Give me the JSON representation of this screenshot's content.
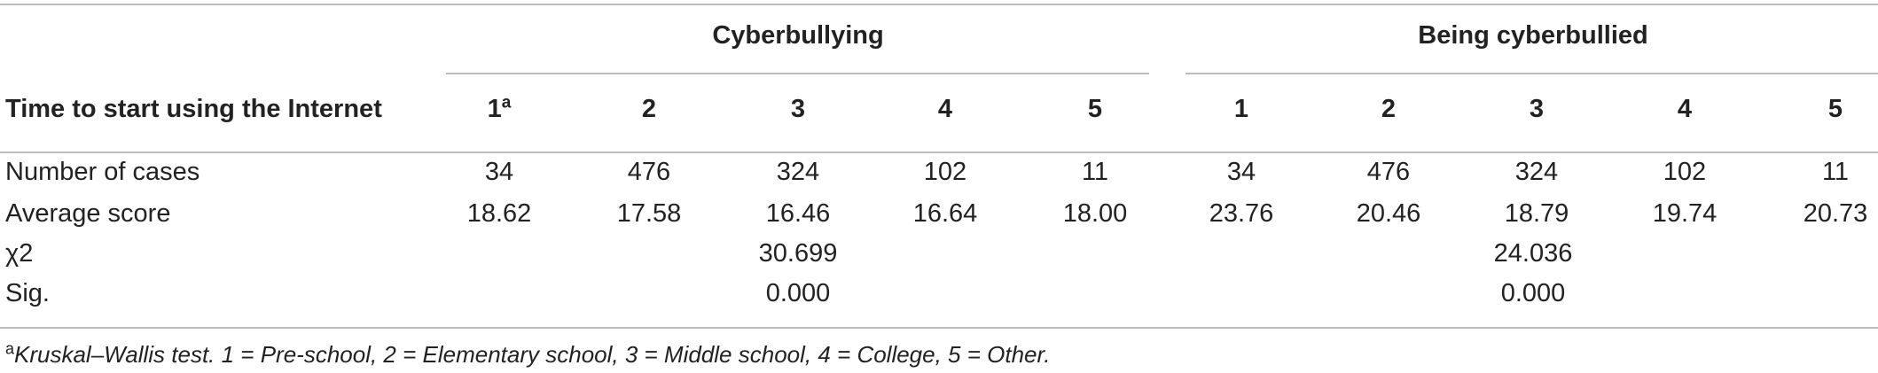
{
  "groups": {
    "cyber": "Cyberbullying",
    "victim": "Being cyberbullied"
  },
  "row_header": "Time to start using the Internet",
  "superscript": "a",
  "columns": {
    "cyber": [
      "1",
      "2",
      "3",
      "4",
      "5"
    ],
    "victim": [
      "1",
      "2",
      "3",
      "4",
      "5"
    ]
  },
  "rows": {
    "cases": {
      "label": "Number of cases",
      "cyber": [
        "34",
        "476",
        "324",
        "102",
        "11"
      ],
      "victim": [
        "34",
        "476",
        "324",
        "102",
        "11"
      ]
    },
    "average": {
      "label": "Average score",
      "cyber": [
        "18.62",
        "17.58",
        "16.46",
        "16.64",
        "18.00"
      ],
      "victim": [
        "23.76",
        "20.46",
        "18.79",
        "19.74",
        "20.73"
      ]
    },
    "chi": {
      "label": "χ2",
      "cyber": "30.699",
      "victim": "24.036"
    },
    "sig": {
      "label": "Sig.",
      "cyber": "0.000",
      "victim": "0.000"
    }
  },
  "footnote": {
    "marker": "a",
    "text": "Kruskal–Wallis test. 1 = Pre-school, 2 = Elementary school, 3 = Middle school, 4 = College, 5 = Other."
  }
}
